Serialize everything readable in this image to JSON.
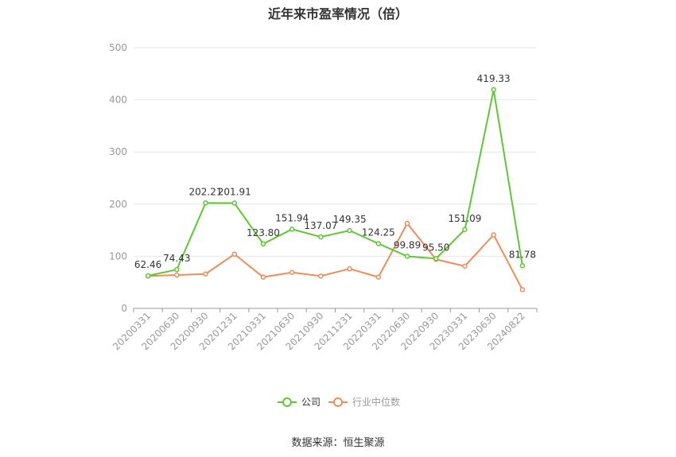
{
  "title": "近年来市盈率情况（倍）",
  "source": "数据来源：恒生聚源",
  "colors": {
    "company": "#5ec832",
    "industry": "#f08c5a"
  },
  "chart_data": {
    "type": "line",
    "title": "近年来市盈率情况（倍）",
    "categories": [
      "20200331",
      "20200630",
      "20200930",
      "20201231",
      "20210331",
      "20210630",
      "20210930",
      "20211231",
      "20220331",
      "20220630",
      "20220930",
      "20230331",
      "20230630",
      "20240822"
    ],
    "ylim": [
      0,
      500
    ],
    "yticks": [
      0,
      100,
      200,
      300,
      400,
      500
    ],
    "grid": true,
    "legend_position": "bottom",
    "series": [
      {
        "name": "公司",
        "values": [
          62.46,
          74.43,
          202.21,
          201.91,
          123.8,
          151.94,
          137.07,
          149.35,
          124.25,
          99.89,
          95.5,
          151.09,
          419.33,
          81.78
        ],
        "labels": [
          "62.46",
          "74.43",
          "202.21",
          "201.91",
          "123.80",
          "151.94",
          "137.07",
          "149.35",
          "124.25",
          "99.89",
          "95.50",
          "151.09",
          "419.33",
          "81.78"
        ]
      },
      {
        "name": "行业中位数",
        "values": [
          62,
          64,
          66,
          104,
          60,
          69,
          62,
          76,
          60,
          163,
          94,
          81,
          141,
          36
        ]
      }
    ]
  }
}
